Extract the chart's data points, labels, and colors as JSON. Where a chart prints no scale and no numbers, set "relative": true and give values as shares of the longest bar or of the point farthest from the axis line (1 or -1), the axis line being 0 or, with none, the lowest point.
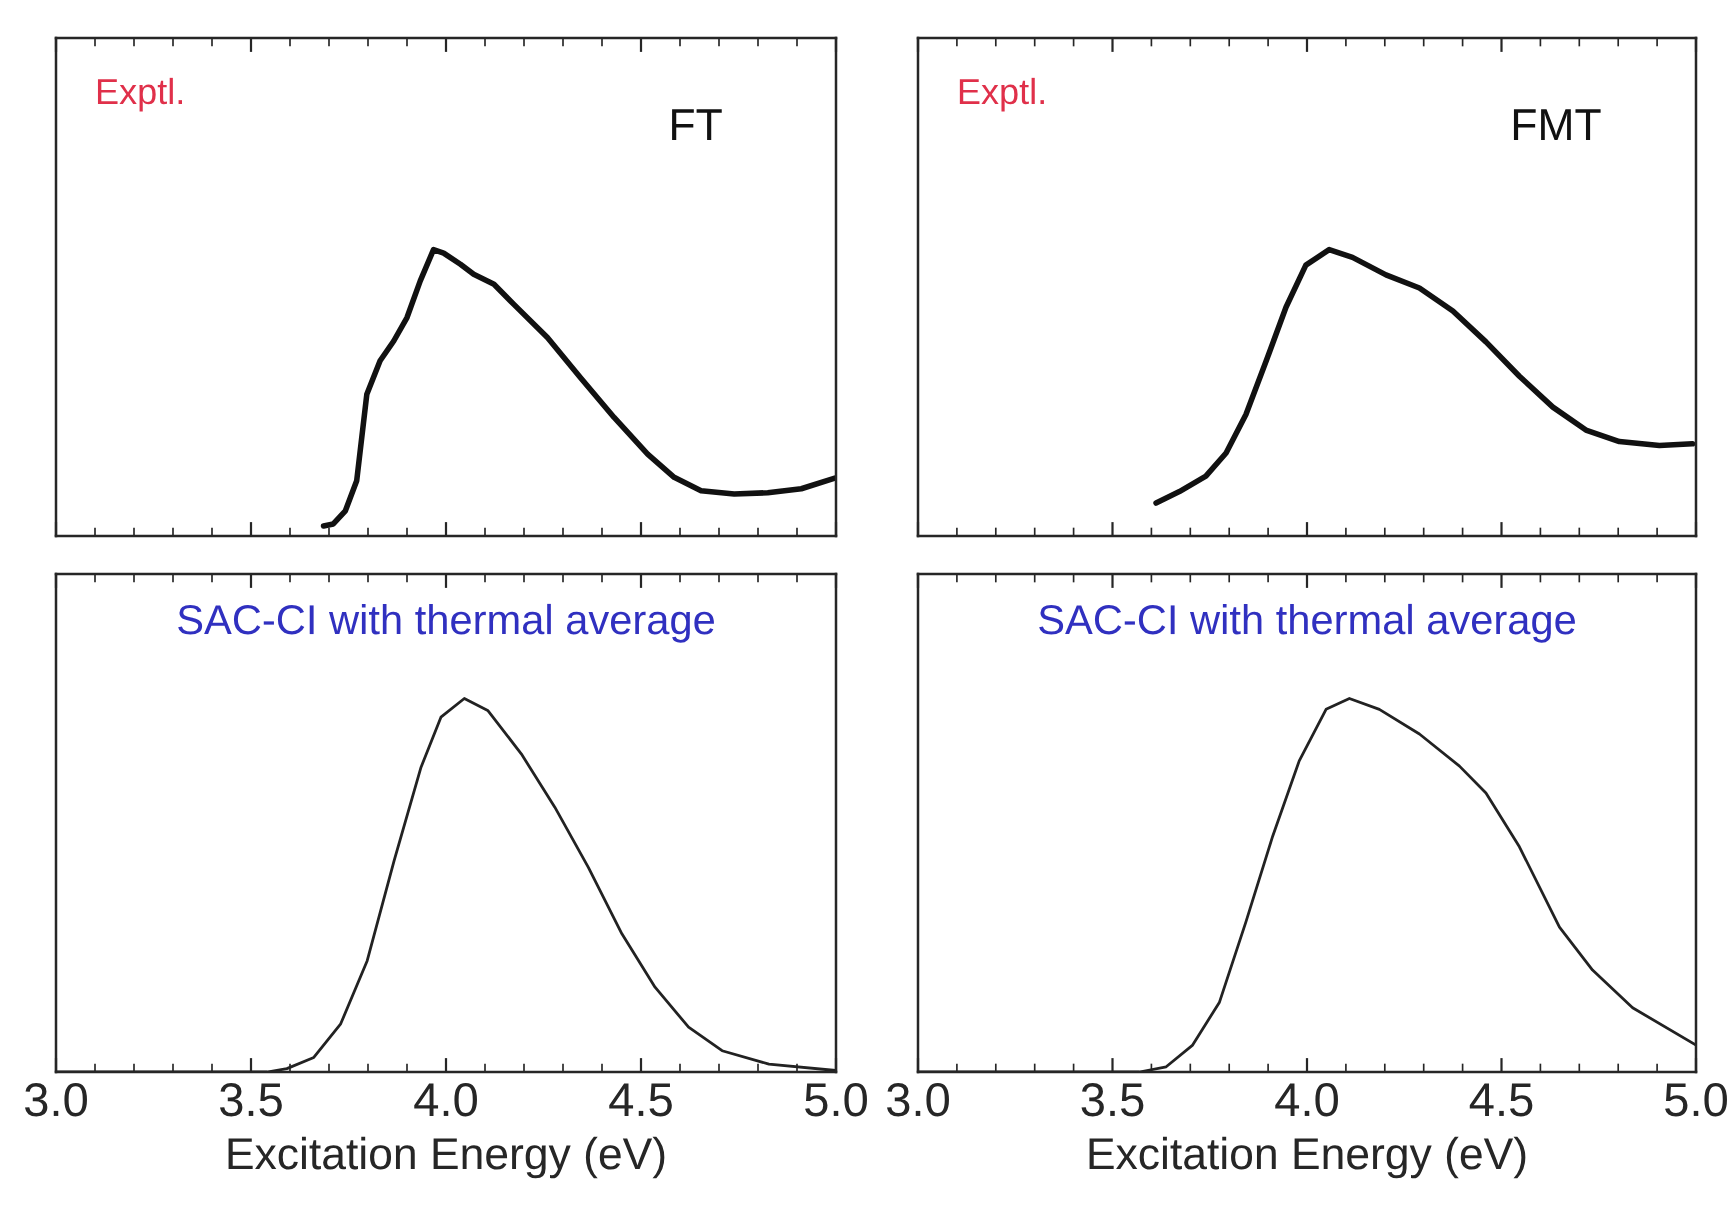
{
  "chart_data": [
    {
      "type": "line",
      "relative": true,
      "annotations": [
        "Exptl.",
        "FT"
      ],
      "xlim": [
        3,
        5
      ],
      "xticks": [
        {
          "value": 3,
          "label": null
        },
        {
          "value": 3.5,
          "label": null
        },
        {
          "value": 4,
          "label": null
        },
        {
          "value": 4.5,
          "label": null
        },
        {
          "value": 5,
          "label": null
        }
      ],
      "tick_labels": false,
      "series": [
        {
          "color": "#111111",
          "x": [
            3.686,
            3.711,
            3.742,
            3.771,
            3.797,
            3.831,
            3.866,
            3.9,
            3.934,
            3.968,
            3.994,
            4.037,
            4.071,
            4.123,
            4.174,
            4.26,
            4.345,
            4.431,
            4.517,
            4.585,
            4.654,
            4.739,
            4.825,
            4.911,
            4.997
          ],
          "values": [
            0.035,
            0.042,
            0.088,
            0.193,
            0.495,
            0.612,
            0.681,
            0.763,
            0.891,
            1,
            0.988,
            0.949,
            0.914,
            0.879,
            0.809,
            0.693,
            0.553,
            0.414,
            0.286,
            0.205,
            0.158,
            0.147,
            0.151,
            0.165,
            0.202
          ]
        }
      ]
    },
    {
      "type": "line",
      "relative": true,
      "annotations": [
        "Exptl.",
        "FMT"
      ],
      "xlim": [
        3,
        5
      ],
      "xticks": [
        {
          "value": 3,
          "label": null
        },
        {
          "value": 3.5,
          "label": null
        },
        {
          "value": 4,
          "label": null
        },
        {
          "value": 4.5,
          "label": null
        },
        {
          "value": 5,
          "label": null
        }
      ],
      "tick_labels": false,
      "series": [
        {
          "color": "#111111",
          "x": [
            3.612,
            3.672,
            3.74,
            3.792,
            3.843,
            3.895,
            3.946,
            3.997,
            4.057,
            4.117,
            4.203,
            4.289,
            4.375,
            4.46,
            4.546,
            4.632,
            4.717,
            4.803,
            4.906,
            4.991
          ],
          "values": [
            0.115,
            0.155,
            0.209,
            0.29,
            0.424,
            0.611,
            0.799,
            0.946,
            1,
            0.973,
            0.912,
            0.866,
            0.786,
            0.678,
            0.558,
            0.45,
            0.37,
            0.33,
            0.316,
            0.322
          ]
        }
      ]
    },
    {
      "type": "line",
      "relative": true,
      "annotations": [
        "SAC-CI with thermal average"
      ],
      "xlabel": "Excitation Energy (eV)",
      "xlim": [
        3,
        5
      ],
      "xticks": [
        {
          "value": 3,
          "label": "3.0"
        },
        {
          "value": 3.5,
          "label": "3.5"
        },
        {
          "value": 4,
          "label": "4.0"
        },
        {
          "value": 4.5,
          "label": "4.5"
        },
        {
          "value": 5,
          "label": "5.0"
        }
      ],
      "tick_labels": "x",
      "series": [
        {
          "color": "#222222",
          "x": [
            3.0,
            3.541,
            3.592,
            3.661,
            3.73,
            3.798,
            3.867,
            3.936,
            3.987,
            4.047,
            4.107,
            4.193,
            4.279,
            4.365,
            4.451,
            4.536,
            4.622,
            4.708,
            4.828,
            5.0
          ],
          "values": [
            0,
            0,
            0.009,
            0.039,
            0.129,
            0.298,
            0.566,
            0.816,
            0.95,
            1,
            0.968,
            0.852,
            0.709,
            0.548,
            0.37,
            0.227,
            0.12,
            0.057,
            0.021,
            0.004
          ]
        }
      ]
    },
    {
      "type": "line",
      "relative": true,
      "annotations": [
        "SAC-CI with thermal average"
      ],
      "xlabel": "Excitation Energy (eV)",
      "xlim": [
        3,
        5
      ],
      "xticks": [
        {
          "value": 3,
          "label": "3.0"
        },
        {
          "value": 3.5,
          "label": "3.5"
        },
        {
          "value": 4,
          "label": "4.0"
        },
        {
          "value": 4.5,
          "label": "4.5"
        },
        {
          "value": 5,
          "label": "5.0"
        }
      ],
      "tick_labels": "x",
      "series": [
        {
          "color": "#222222",
          "x": [
            3.0,
            3.569,
            3.638,
            3.706,
            3.775,
            3.843,
            3.912,
            3.98,
            4.049,
            4.109,
            4.186,
            4.289,
            4.392,
            4.46,
            4.546,
            4.649,
            4.734,
            4.837,
            5.0
          ],
          "values": [
            0,
            0,
            0.014,
            0.072,
            0.187,
            0.402,
            0.632,
            0.833,
            0.971,
            1,
            0.971,
            0.905,
            0.819,
            0.747,
            0.603,
            0.388,
            0.273,
            0.172,
            0.072
          ]
        }
      ]
    }
  ]
}
